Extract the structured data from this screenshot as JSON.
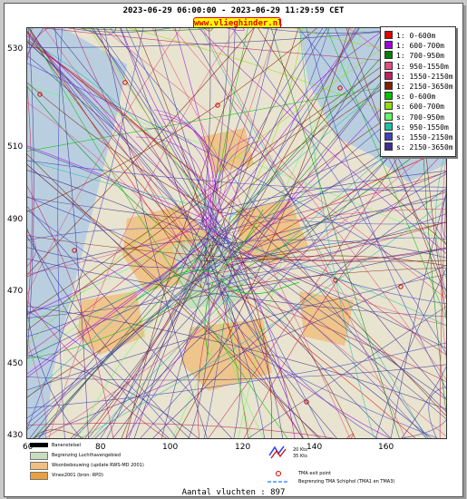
{
  "title": "2023-06-29 06:00:00 - 2023-06-29 11:29:59 CET",
  "site": "www.vlieghinder.nl",
  "y_axis": [
    "530",
    "510",
    "490",
    "470",
    "450",
    "430"
  ],
  "x_axis": [
    "60",
    "80",
    "100",
    "120",
    "140",
    "160"
  ],
  "legend": [
    {
      "label": "1: 0-600m",
      "color": "#e00000"
    },
    {
      "label": "1: 600-700m",
      "color": "#a000e0"
    },
    {
      "label": "1: 700-950m",
      "color": "#008000"
    },
    {
      "label": "1: 950-1550m",
      "color": "#e05080"
    },
    {
      "label": "1: 1550-2150m",
      "color": "#c02060"
    },
    {
      "label": "1: 2150-3650m",
      "color": "#802000"
    },
    {
      "label": "s: 0-600m",
      "color": "#00c000"
    },
    {
      "label": "s: 600-700m",
      "color": "#90e000"
    },
    {
      "label": "s: 700-950m",
      "color": "#60ff60"
    },
    {
      "label": "s: 950-1550m",
      "color": "#20c0a0"
    },
    {
      "label": "s: 1550-2150m",
      "color": "#4040c0"
    },
    {
      "label": "s: 2150-3650m",
      "color": "#403090"
    }
  ],
  "key_items": {
    "runway": "Banenstelsel",
    "airport_boundary": "Begrenzing Luchthavengebied",
    "housing": "Woonbebouwing (update RWS-MD 2001)",
    "vinex": "Vinex2001 (bron: RPD)",
    "wind_20": "20 Kts",
    "wind_35": "35 Kts",
    "tma_exit": "TMA exit point",
    "tma_boundary": "Begrenzing TMA Schiphol  (TMA1 en TMA3)"
  },
  "colors": {
    "runway": "#000000",
    "airport_boundary": "#c8dcc0",
    "housing": "#f0c080",
    "vinex": "#e8a040",
    "tma": "#4090ff",
    "exit_point": "#d00000"
  },
  "footer": "Aantal vluchten : 897"
}
